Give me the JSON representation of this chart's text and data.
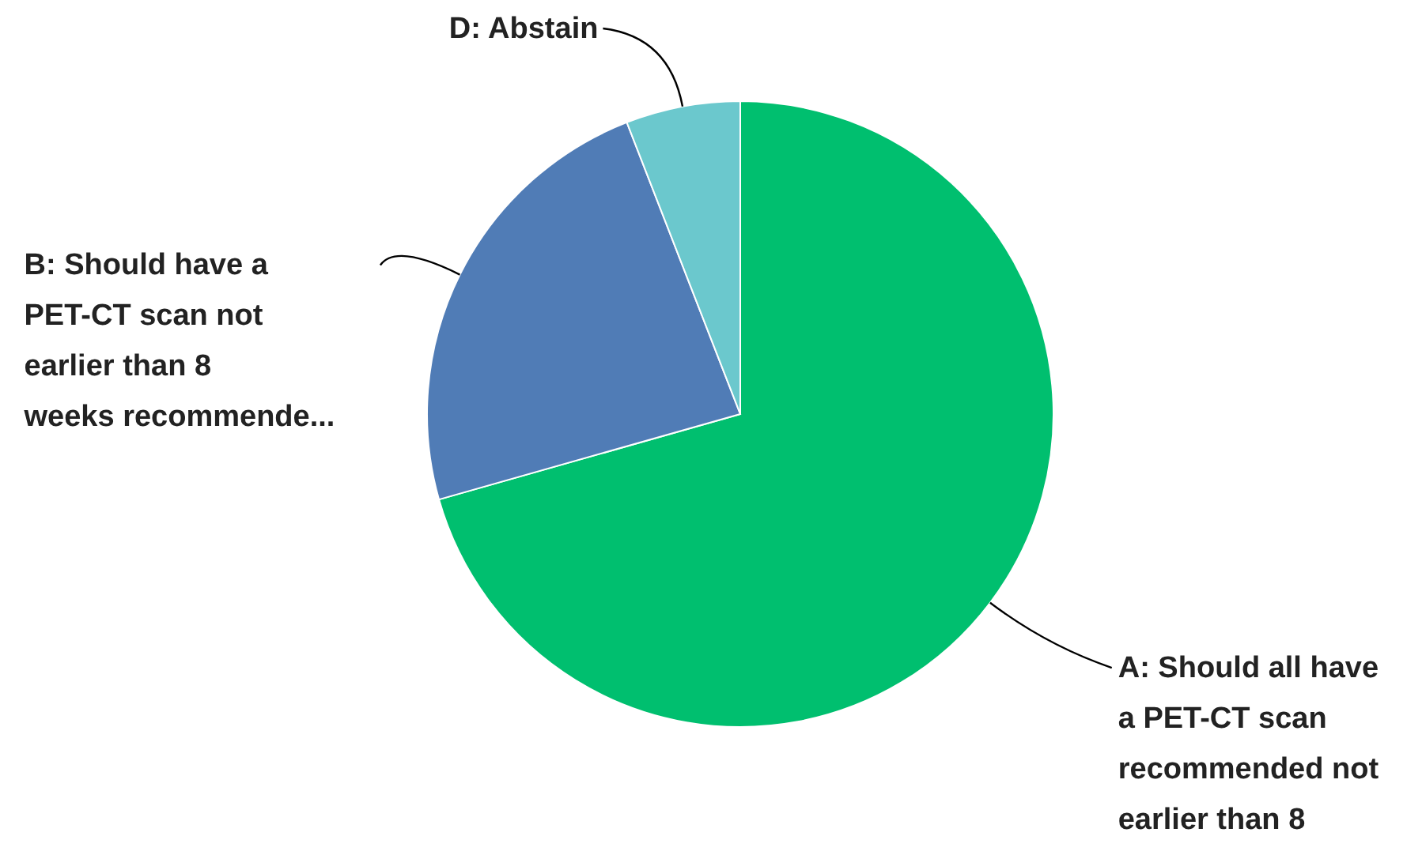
{
  "chart_data": {
    "type": "pie",
    "categories": [
      "A: Should all have a PET-CT scan recommended not earlier than 8",
      "B: Should have a PET-CT scan not earlier than 8 weeks recommende...",
      "D: Abstain"
    ],
    "values": [
      70.6,
      23.5,
      5.9
    ],
    "colors": [
      "#00bf6f",
      "#507cb6",
      "#6bc8cd"
    ]
  }
}
